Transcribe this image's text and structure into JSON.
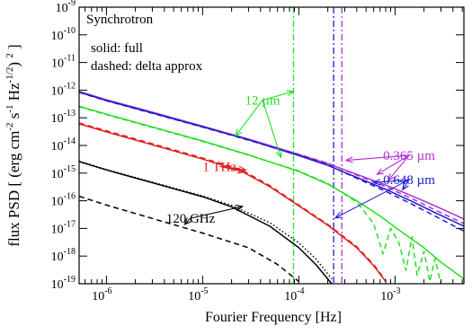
{
  "chart_data": {
    "type": "line",
    "title": "",
    "xlabel": "Fourier Frequency [Hz]",
    "ylabel_parts": [
      "flux PSD [ (erg cm",
      "-2",
      " s",
      "-1",
      " Hz",
      "-1/2",
      ") ",
      "2",
      " ]"
    ],
    "x_scale": "log",
    "y_scale": "log",
    "xlim": [
      5.2e-07,
      0.0052
    ],
    "ylim": [
      1e-19,
      1e-09
    ],
    "x_ticks": [
      {
        "value": 1e-06,
        "base": "10",
        "exp": "-6"
      },
      {
        "value": 1e-05,
        "base": "10",
        "exp": "-5"
      },
      {
        "value": 0.0001,
        "base": "10",
        "exp": "-4"
      },
      {
        "value": 0.001,
        "base": "10",
        "exp": "-3"
      }
    ],
    "y_ticks": [
      {
        "value": 1e-19,
        "base": "10",
        "exp": "-19"
      },
      {
        "value": 1e-18,
        "base": "10",
        "exp": "-18"
      },
      {
        "value": 1e-17,
        "base": "10",
        "exp": "-17"
      },
      {
        "value": 1e-16,
        "base": "10",
        "exp": "-16"
      },
      {
        "value": 1e-15,
        "base": "10",
        "exp": "-15"
      },
      {
        "value": 1e-14,
        "base": "10",
        "exp": "-14"
      },
      {
        "value": 1e-13,
        "base": "10",
        "exp": "-13"
      },
      {
        "value": 1e-12,
        "base": "10",
        "exp": "-12"
      },
      {
        "value": 1e-11,
        "base": "10",
        "exp": "-11"
      },
      {
        "value": 1e-10,
        "base": "10",
        "exp": "-10"
      },
      {
        "value": 1e-09,
        "base": "10",
        "exp": "-9"
      }
    ],
    "panel_label": "Synchrotron",
    "legend_lines": [
      "solid:  full",
      "dashed:  delta approx"
    ],
    "colors": {
      "purple": "#b030d0",
      "blue": "#1c1cd0",
      "green": "#22e022",
      "red": "#e02020",
      "black": "#000000"
    },
    "series": [
      {
        "name": "0.365 µm",
        "color": "#b030d0",
        "style": "solid",
        "points": [
          [
            5.2e-07,
            9e-13
          ],
          [
            1e-06,
            4.5e-13
          ],
          [
            3e-06,
            1.6e-13
          ],
          [
            1e-05,
            5e-14
          ],
          [
            3e-05,
            1.7e-14
          ],
          [
            0.0001,
            4.7e-15
          ],
          [
            0.0002,
            2.2e-15
          ],
          [
            0.0004,
            9e-16
          ],
          [
            0.0008,
            3.7e-16
          ],
          [
            0.0015,
            1.5e-16
          ],
          [
            0.0025,
            7e-17
          ],
          [
            0.0052,
            2.2e-17
          ]
        ]
      },
      {
        "name": "0.365 µm",
        "color": "#b030d0",
        "style": "dashed",
        "points": [
          [
            5.2e-07,
            8.8e-13
          ],
          [
            1e-06,
            4.4e-13
          ],
          [
            3e-06,
            1.55e-13
          ],
          [
            1e-05,
            4.9e-14
          ],
          [
            3e-05,
            1.65e-14
          ],
          [
            0.0001,
            4.8e-15
          ],
          [
            0.0002,
            2.3e-15
          ],
          [
            0.0004,
            8.5e-16
          ],
          [
            0.0008,
            3.2e-16
          ],
          [
            0.0015,
            1.2e-16
          ],
          [
            0.0025,
            5e-17
          ],
          [
            0.0052,
            1.5e-17
          ]
        ]
      },
      {
        "name": "0.648 µm",
        "color": "#1c1cd0",
        "style": "solid",
        "points": [
          [
            5.2e-07,
            8.5e-13
          ],
          [
            1e-06,
            4.2e-13
          ],
          [
            3e-06,
            1.5e-13
          ],
          [
            1e-05,
            4.7e-14
          ],
          [
            3e-05,
            1.6e-14
          ],
          [
            0.0001,
            4.3e-15
          ],
          [
            0.0002,
            1.9e-15
          ],
          [
            0.0004,
            7e-16
          ],
          [
            0.0008,
            2.6e-16
          ],
          [
            0.0015,
            9.5e-17
          ],
          [
            0.0025,
            4e-17
          ],
          [
            0.0052,
            1.2e-17
          ]
        ]
      },
      {
        "name": "0.648 µm",
        "color": "#1c1cd0",
        "style": "dashed",
        "points": [
          [
            5.2e-07,
            8.3e-13
          ],
          [
            1e-06,
            4.1e-13
          ],
          [
            3e-06,
            1.45e-13
          ],
          [
            1e-05,
            4.6e-14
          ],
          [
            3e-05,
            1.55e-14
          ],
          [
            0.0001,
            4.4e-15
          ],
          [
            0.0002,
            2e-15
          ],
          [
            0.0004,
            6.5e-16
          ],
          [
            0.0008,
            2.2e-16
          ],
          [
            0.0015,
            7.5e-17
          ],
          [
            0.0025,
            3e-17
          ],
          [
            0.0052,
            8e-18
          ]
        ]
      },
      {
        "name": "12 µm",
        "color": "#22e022",
        "style": "solid",
        "points": [
          [
            5.2e-07,
            2.6e-13
          ],
          [
            1e-06,
            1.35e-13
          ],
          [
            3e-06,
            4.7e-14
          ],
          [
            1e-05,
            1.45e-14
          ],
          [
            3e-05,
            4.6e-15
          ],
          [
            0.0001,
            1.15e-15
          ],
          [
            0.0002,
            4e-16
          ],
          [
            0.0004,
            1e-16
          ],
          [
            0.0007,
            2.8e-17
          ],
          [
            0.0012,
            7e-18
          ],
          [
            0.002,
            2e-18
          ],
          [
            0.003,
            6e-19
          ],
          [
            0.0052,
            1.5e-19
          ]
        ]
      },
      {
        "name": "12 µm",
        "color": "#22e022",
        "style": "dashed",
        "points": [
          [
            5.2e-07,
            2.5e-13
          ],
          [
            1e-06,
            1.3e-13
          ],
          [
            3e-06,
            4.5e-14
          ],
          [
            1e-05,
            1.4e-14
          ],
          [
            3e-05,
            4.5e-15
          ],
          [
            0.0001,
            1.2e-15
          ],
          [
            0.0002,
            4.2e-16
          ],
          [
            0.0004,
            9e-17
          ],
          [
            0.0006,
            1.5e-17
          ],
          [
            0.00075,
            1.2e-18
          ],
          [
            0.0009,
            1e-17
          ],
          [
            0.0011,
            3e-18
          ],
          [
            0.0013,
            3e-19
          ],
          [
            0.0015,
            5e-18
          ],
          [
            0.0017,
            2e-19
          ],
          [
            0.002,
            1.5e-18
          ],
          [
            0.0023,
            1.2e-19
          ],
          [
            0.0026,
            8e-19
          ],
          [
            0.003,
            1e-19
          ]
        ]
      },
      {
        "name": "1 THz",
        "color": "#e02020",
        "style": "solid",
        "points": [
          [
            5.2e-07,
            6e-14
          ],
          [
            1e-06,
            3.1e-14
          ],
          [
            3e-06,
            1.05e-14
          ],
          [
            1e-05,
            3.2e-15
          ],
          [
            2.5e-05,
            1.2e-15
          ],
          [
            5e-05,
            3.2e-16
          ],
          [
            0.0001,
            6.5e-17
          ],
          [
            0.0002,
            1.3e-17
          ],
          [
            0.0004,
            2e-18
          ],
          [
            0.0006,
            4.5e-19
          ],
          [
            0.0008,
            1.2e-19
          ]
        ]
      },
      {
        "name": "1 THz",
        "color": "#e02020",
        "style": "dashed",
        "points": [
          [
            5.2e-07,
            6.5e-14
          ],
          [
            1e-06,
            3.4e-14
          ],
          [
            3e-06,
            1.15e-14
          ],
          [
            1e-05,
            3.5e-15
          ],
          [
            2.5e-05,
            1.35e-15
          ],
          [
            5e-05,
            3.5e-16
          ],
          [
            0.0001,
            7e-17
          ],
          [
            0.0002,
            1.4e-17
          ],
          [
            0.0004,
            2.2e-18
          ],
          [
            0.0006,
            5e-19
          ],
          [
            0.0008,
            1.3e-19
          ]
        ]
      },
      {
        "name": "120 GHz",
        "color": "#000000",
        "style": "solid",
        "points": [
          [
            5.2e-07,
            2.6e-15
          ],
          [
            1e-06,
            1.3e-15
          ],
          [
            3e-06,
            4.5e-16
          ],
          [
            1e-05,
            1.4e-16
          ],
          [
            2e-05,
            6e-17
          ],
          [
            5e-05,
            1.2e-17
          ],
          [
            0.0001,
            2e-18
          ],
          [
            0.00015,
            5e-19
          ],
          [
            0.00022,
            1e-19
          ]
        ]
      },
      {
        "name": "120 GHz",
        "color": "#000000",
        "style": "dotted",
        "points": [
          [
            5.2e-07,
            2.7e-15
          ],
          [
            1e-06,
            1.35e-15
          ],
          [
            3e-06,
            4.7e-16
          ],
          [
            1e-05,
            1.5e-16
          ],
          [
            2e-05,
            6.8e-17
          ],
          [
            5e-05,
            1.6e-17
          ],
          [
            0.0001,
            3e-18
          ],
          [
            0.00015,
            8e-19
          ],
          [
            0.00022,
            1.5e-19
          ]
        ]
      },
      {
        "name": "120 GHz",
        "color": "#000000",
        "style": "dashed",
        "points": [
          [
            5.2e-07,
            1.45e-16
          ],
          [
            1e-06,
            7e-17
          ],
          [
            3e-06,
            2.3e-17
          ],
          [
            1e-05,
            6.8e-18
          ],
          [
            3e-05,
            2e-18
          ],
          [
            6e-05,
            5e-19
          ],
          [
            0.0001,
            1.2e-19
          ]
        ]
      }
    ],
    "vlines": [
      {
        "x": 8.8e-05,
        "color": "#22e022",
        "style": "dashdot"
      },
      {
        "x": 0.00023,
        "color": "#1c1cd0",
        "style": "dashdot"
      },
      {
        "x": 0.00028,
        "color": "#b030d0",
        "style": "dashdot"
      }
    ],
    "annotations": [
      {
        "text": "12 µm",
        "color": "#22e022",
        "text_at": [
          4.2e-05,
          3e-13
        ],
        "arrows": [
          [
            8.8e-05,
            9e-13
          ],
          [
            2.2e-05,
            2.2e-14
          ],
          [
            6.5e-05,
            3.7e-15
          ]
        ]
      },
      {
        "text": "1 THz",
        "color": "#e02020",
        "text_at": [
          1.5e-05,
          1.2e-15
        ],
        "arrows": [
          [
            2.8e-05,
            1.3e-15
          ],
          [
            2.7e-05,
            1.1e-15
          ]
        ]
      },
      {
        "text": "120 GHz",
        "color": "#000000",
        "text_at": [
          7.5e-06,
          1.6e-17
        ],
        "arrows": [
          [
            2.6e-05,
            6.2e-17
          ],
          [
            6.5e-06,
            1.4e-17
          ]
        ]
      },
      {
        "text": "0.365 µm",
        "color": "#b030d0",
        "text_at": [
          0.0014,
          3e-15
        ],
        "arrows": [
          [
            0.00031,
            2.9e-15
          ],
          [
            0.00065,
            9e-16
          ],
          [
            0.00085,
            5.5e-16
          ]
        ]
      },
      {
        "text": "0.648 µm",
        "color": "#1c1cd0",
        "text_at": [
          0.0014,
          4e-16
        ],
        "arrows": [
          [
            0.00024,
            2.4e-17
          ],
          [
            0.0006,
            4.5e-16
          ],
          [
            0.0012,
            2.5e-16
          ]
        ]
      }
    ]
  }
}
